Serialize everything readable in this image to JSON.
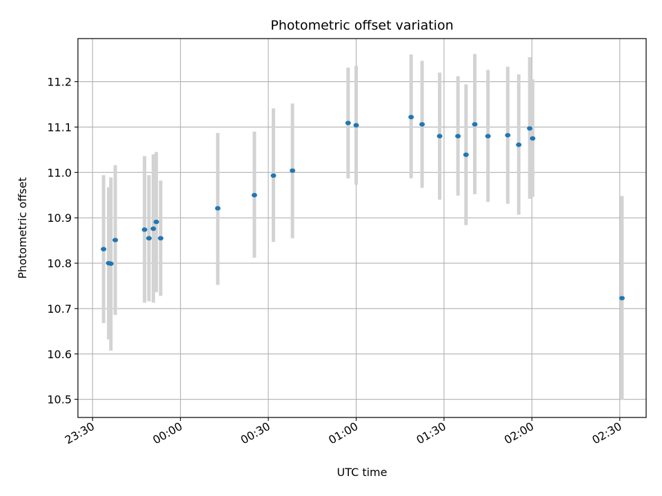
{
  "chart_data": {
    "type": "scatter",
    "title": "Photometric offset variation",
    "xlabel": "UTC time",
    "ylabel": "Photometric offset",
    "grid": true,
    "xlim": [
      "23:25:00",
      "02:39:00"
    ],
    "ylim": [
      10.46,
      11.295
    ],
    "x_ticks": [
      {
        "label": "23:30",
        "t": "23:30:00"
      },
      {
        "label": "00:00",
        "t": "00:00:00"
      },
      {
        "label": "00:30",
        "t": "00:30:00"
      },
      {
        "label": "01:00",
        "t": "01:00:00"
      },
      {
        "label": "01:30",
        "t": "01:30:00"
      },
      {
        "label": "02:00",
        "t": "02:00:00"
      },
      {
        "label": "02:30",
        "t": "02:30:00"
      }
    ],
    "y_ticks": [
      "10.5",
      "10.6",
      "10.7",
      "10.8",
      "10.9",
      "11.0",
      "11.1",
      "11.2"
    ],
    "colors": {
      "point": "#1f77b4",
      "errorbar": "#d3d3d3",
      "grid": "#b0b0b0",
      "axes": "#000000"
    },
    "points": [
      {
        "time": "23:33:45",
        "y": 10.831,
        "ylo": 10.668,
        "yhi": 10.994
      },
      {
        "time": "23:35:30",
        "y": 10.8,
        "ylo": 10.632,
        "yhi": 10.967
      },
      {
        "time": "23:36:15",
        "y": 10.799,
        "ylo": 10.607,
        "yhi": 10.989
      },
      {
        "time": "23:37:45",
        "y": 10.851,
        "ylo": 10.686,
        "yhi": 11.016
      },
      {
        "time": "23:47:45",
        "y": 10.874,
        "ylo": 10.713,
        "yhi": 11.036
      },
      {
        "time": "23:49:15",
        "y": 10.855,
        "ylo": 10.716,
        "yhi": 10.994
      },
      {
        "time": "23:50:45",
        "y": 10.876,
        "ylo": 10.713,
        "yhi": 11.04
      },
      {
        "time": "23:51:45",
        "y": 10.891,
        "ylo": 10.736,
        "yhi": 11.045
      },
      {
        "time": "23:53:15",
        "y": 10.855,
        "ylo": 10.728,
        "yhi": 10.982
      },
      {
        "time": "00:12:45",
        "y": 10.921,
        "ylo": 10.752,
        "yhi": 11.087
      },
      {
        "time": "00:25:15",
        "y": 10.95,
        "ylo": 10.812,
        "yhi": 11.09
      },
      {
        "time": "00:31:45",
        "y": 10.993,
        "ylo": 10.847,
        "yhi": 11.141
      },
      {
        "time": "00:38:15",
        "y": 11.004,
        "ylo": 10.855,
        "yhi": 11.152
      },
      {
        "time": "00:57:15",
        "y": 11.109,
        "ylo": 10.987,
        "yhi": 11.231
      },
      {
        "time": "01:00:00",
        "y": 11.104,
        "ylo": 10.973,
        "yhi": 11.235
      },
      {
        "time": "01:18:45",
        "y": 11.122,
        "ylo": 10.987,
        "yhi": 11.26
      },
      {
        "time": "01:22:30",
        "y": 11.106,
        "ylo": 10.966,
        "yhi": 11.246
      },
      {
        "time": "01:28:30",
        "y": 11.08,
        "ylo": 10.94,
        "yhi": 11.22
      },
      {
        "time": "01:34:45",
        "y": 11.08,
        "ylo": 10.949,
        "yhi": 11.212
      },
      {
        "time": "01:37:30",
        "y": 11.039,
        "ylo": 10.884,
        "yhi": 11.194
      },
      {
        "time": "01:40:30",
        "y": 11.106,
        "ylo": 10.952,
        "yhi": 11.261
      },
      {
        "time": "01:45:00",
        "y": 11.08,
        "ylo": 10.935,
        "yhi": 11.226
      },
      {
        "time": "01:51:45",
        "y": 11.082,
        "ylo": 10.931,
        "yhi": 11.233
      },
      {
        "time": "01:55:30",
        "y": 11.061,
        "ylo": 10.907,
        "yhi": 11.216
      },
      {
        "time": "01:59:15",
        "y": 11.097,
        "ylo": 10.942,
        "yhi": 11.254
      },
      {
        "time": "02:00:15",
        "y": 11.075,
        "ylo": 10.946,
        "yhi": 11.205
      },
      {
        "time": "02:30:45",
        "y": 10.723,
        "ylo": 10.499,
        "yhi": 10.948
      }
    ]
  }
}
